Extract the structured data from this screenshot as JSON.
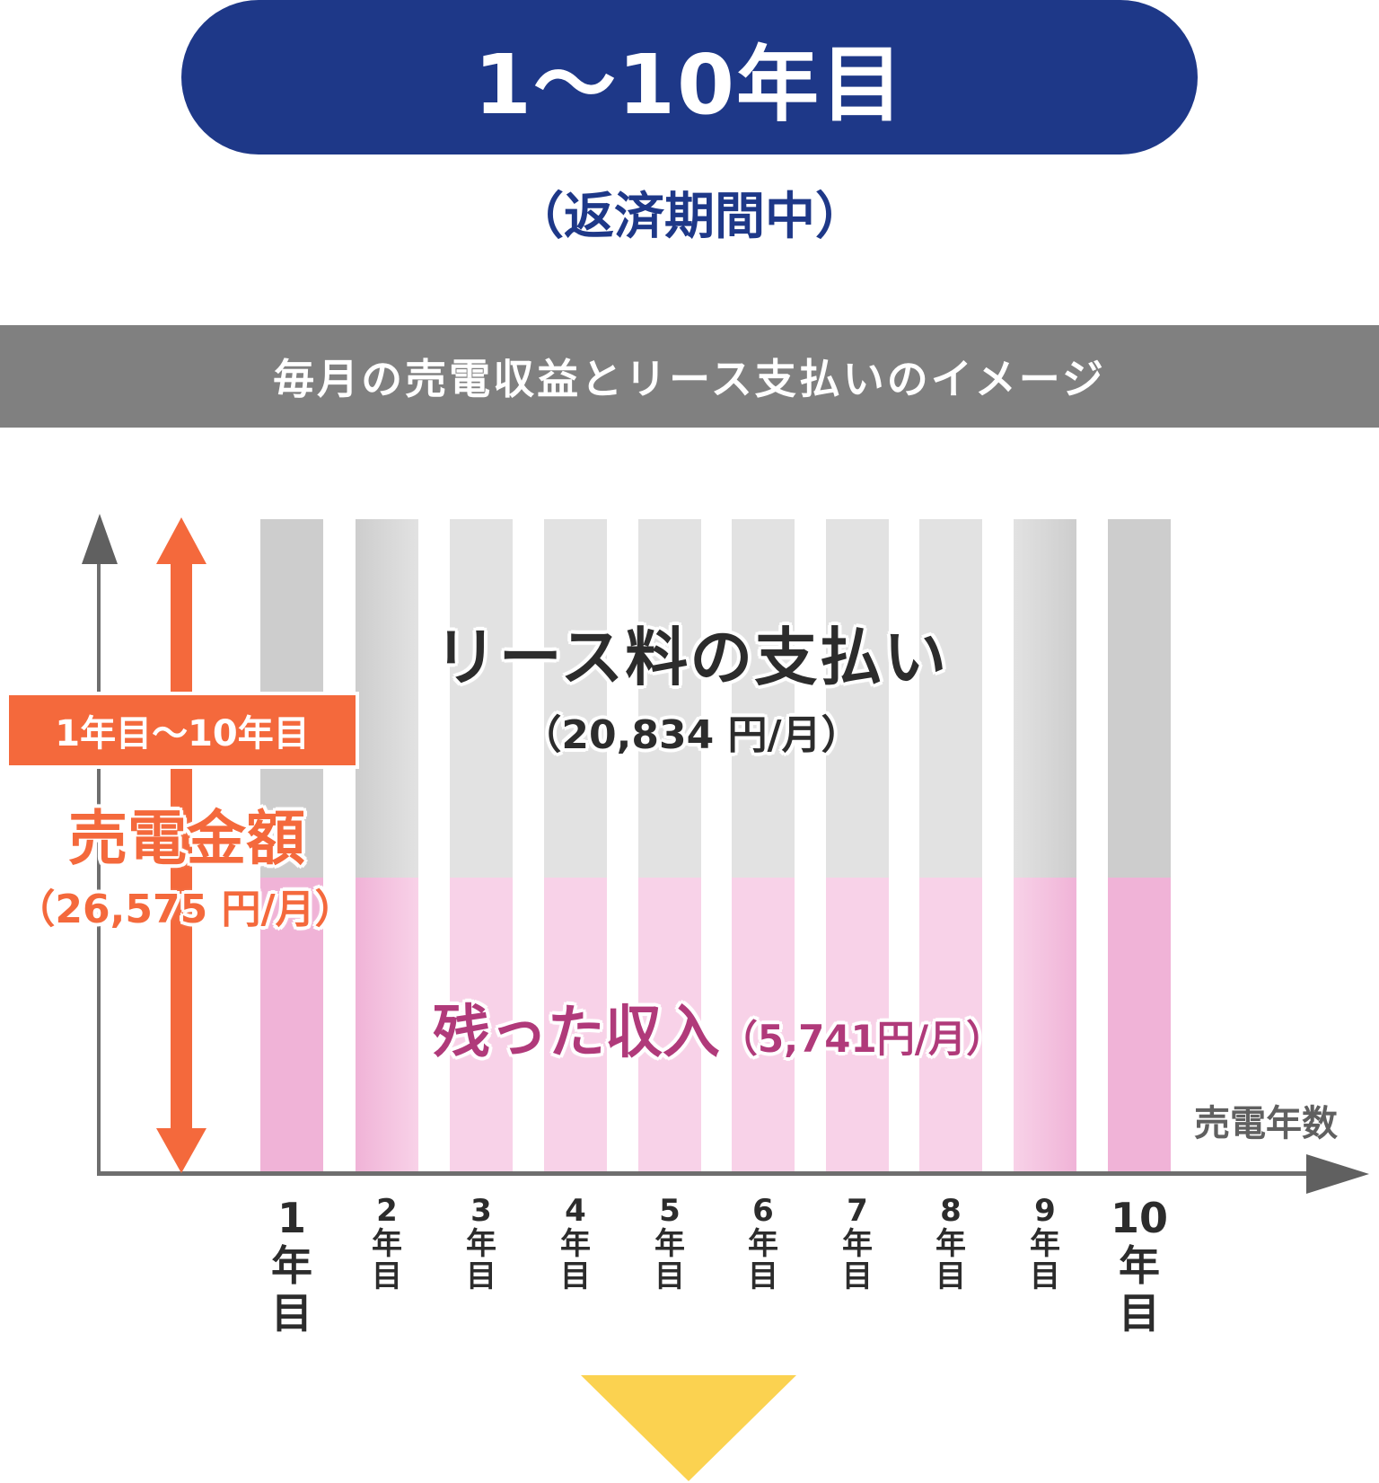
{
  "header": {
    "period_label": "1〜10年目",
    "period_sub": "（返済期間中）"
  },
  "banner": {
    "title": "毎月の売電収益とリース支払いのイメージ"
  },
  "chart": {
    "sales_tag": "1年目〜10年目",
    "sales_title": "売電金額",
    "sales_amount": "（26,575 円/月）",
    "lease_title": "リース料の支払い",
    "lease_amount": "（20,834 円/月）",
    "remain_title": "残った収入",
    "remain_amount": "（5,741円/月）",
    "x_axis_title": "売電年数",
    "colors": {
      "navy": "#1e3888",
      "orange": "#f4693c",
      "magenta_text": "#b03a7a",
      "gray_strong": "#cdcdcd",
      "gray_light": "#e2e2e2",
      "pink_strong": "#f0b3d7",
      "pink_light": "#f8d2e8",
      "arrow_yellow": "#fbd250"
    }
  },
  "chart_data": {
    "type": "bar",
    "title": "毎月の売電収益とリース支払いのイメージ",
    "subtitle": "1〜10年目（返済期間中）",
    "xlabel": "売電年数",
    "ylabel": "売電金額",
    "categories": [
      "1年目",
      "2年目",
      "3年目",
      "4年目",
      "5年目",
      "6年目",
      "7年目",
      "8年目",
      "9年目",
      "10年目"
    ],
    "stacked": true,
    "series": [
      {
        "name": "残った収入",
        "unit": "円/月",
        "values": [
          5741,
          5741,
          5741,
          5741,
          5741,
          5741,
          5741,
          5741,
          5741,
          5741
        ]
      },
      {
        "name": "リース料の支払い",
        "unit": "円/月",
        "values": [
          20834,
          20834,
          20834,
          20834,
          20834,
          20834,
          20834,
          20834,
          20834,
          20834
        ]
      }
    ],
    "total": {
      "name": "売電金額",
      "value": 26575,
      "unit": "円/月"
    },
    "annotations": [
      "1年目〜10年目",
      "売電金額（26,575 円/月）",
      "リース料の支払い（20,834 円/月）",
      "残った収入（5,741円/月）"
    ],
    "grid": false,
    "legend": "none"
  },
  "xlabels": [
    {
      "num": "1",
      "y1": "年",
      "y2": "目",
      "big": true
    },
    {
      "num": "2",
      "y1": "年",
      "y2": "目",
      "big": false
    },
    {
      "num": "3",
      "y1": "年",
      "y2": "目",
      "big": false
    },
    {
      "num": "4",
      "y1": "年",
      "y2": "目",
      "big": false
    },
    {
      "num": "5",
      "y1": "年",
      "y2": "目",
      "big": false
    },
    {
      "num": "6",
      "y1": "年",
      "y2": "目",
      "big": false
    },
    {
      "num": "7",
      "y1": "年",
      "y2": "目",
      "big": false
    },
    {
      "num": "8",
      "y1": "年",
      "y2": "目",
      "big": false
    },
    {
      "num": "9",
      "y1": "年",
      "y2": "目",
      "big": false
    },
    {
      "num": "10",
      "y1": "年",
      "y2": "目",
      "big": true
    }
  ]
}
